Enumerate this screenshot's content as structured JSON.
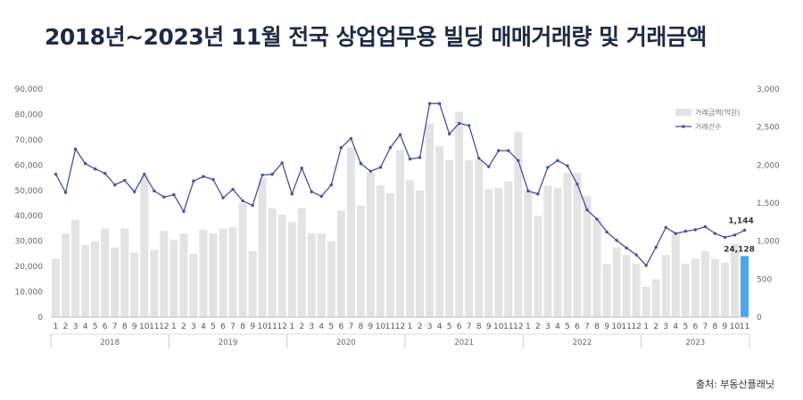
{
  "title": "2018년~2023년 11월 전국 상업업무용 빌딩 매매거래량 및 거래금액",
  "source": "출처: 부동산플래닛",
  "colors": {
    "bar": "#e3e3e3",
    "bar_highlight": "#4aa8e8",
    "line": "#4a4f9c",
    "title": "#1f2a44"
  },
  "chart_data": {
    "type": "bar+line",
    "title": "2018년~2023년 11월 전국 상업업무용 빌딩 매매거래량 및 거래금액",
    "years": [
      "2018",
      "2019",
      "2020",
      "2021",
      "2022",
      "2023"
    ],
    "month_labels": [
      "1",
      "2",
      "3",
      "4",
      "5",
      "6",
      "7",
      "8",
      "9",
      "10",
      "11",
      "12"
    ],
    "last_year_months": 11,
    "left_axis": {
      "min": 0,
      "max": 90000,
      "step": 10000,
      "ticks": [
        "0",
        "10,000",
        "20,000",
        "30,000",
        "40,000",
        "50,000",
        "60,000",
        "70,000",
        "80,000",
        "90,000"
      ]
    },
    "right_axis": {
      "min": 0,
      "max": 3000,
      "step": 500,
      "ticks": [
        "0",
        "500",
        "1,000",
        "1,500",
        "2,000",
        "2,500",
        "3,000"
      ]
    },
    "legend": {
      "position": "top-right",
      "bar_label": "거래금액(억원)",
      "line_label": "거래건수"
    },
    "series": [
      {
        "name": "거래금액(억원)",
        "kind": "bar",
        "axis": "left",
        "values": [
          23000,
          33000,
          38500,
          28500,
          30000,
          35000,
          27500,
          35000,
          25500,
          56000,
          26500,
          34000,
          30500,
          33000,
          25000,
          34500,
          33000,
          35000,
          35500,
          45000,
          26000,
          55000,
          43000,
          40500,
          37500,
          43000,
          33000,
          33000,
          30000,
          42000,
          67000,
          44000,
          57000,
          52000,
          49000,
          66000,
          54000,
          50000,
          76500,
          67500,
          62000,
          81000,
          62000,
          62000,
          50500,
          51000,
          53500,
          73000,
          49500,
          40000,
          52000,
          51000,
          57000,
          57000,
          48000,
          39000,
          21000,
          27500,
          24500,
          21000,
          12000,
          15000,
          24500,
          33500,
          21000,
          23000,
          26000,
          23000,
          21500,
          29000,
          24128
        ]
      },
      {
        "name": "거래건수",
        "kind": "line",
        "axis": "right",
        "values": [
          1880,
          1640,
          2210,
          2020,
          1950,
          1890,
          1740,
          1800,
          1650,
          1880,
          1660,
          1580,
          1610,
          1390,
          1790,
          1850,
          1810,
          1570,
          1680,
          1530,
          1470,
          1870,
          1880,
          2030,
          1620,
          1960,
          1650,
          1590,
          1740,
          2230,
          2350,
          2020,
          1920,
          1970,
          2230,
          2400,
          2080,
          2100,
          2810,
          2810,
          2410,
          2550,
          2520,
          2090,
          1980,
          2190,
          2190,
          2060,
          1660,
          1620,
          1970,
          2060,
          1990,
          1750,
          1410,
          1290,
          1120,
          1010,
          910,
          820,
          680,
          920,
          1180,
          1100,
          1130,
          1150,
          1190,
          1100,
          1050,
          1080,
          1144
        ]
      }
    ],
    "data_labels": {
      "last_bar": "24,128",
      "last_point": "1,144"
    },
    "grid": false
  }
}
